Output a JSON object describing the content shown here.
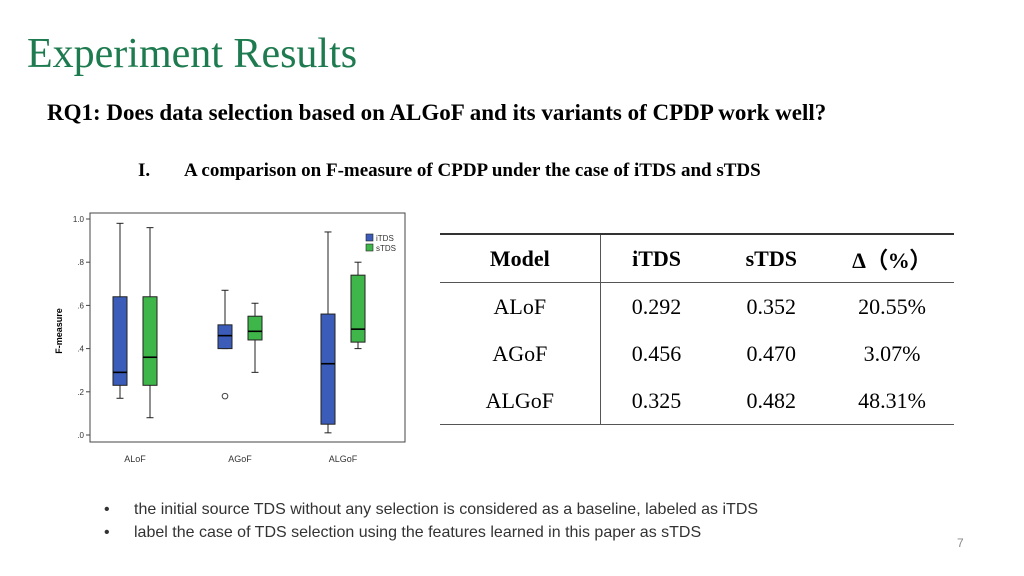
{
  "title": "Experiment Results",
  "research_question": "RQ1: Does data selection based on ALGoF and its variants of CPDP work well?",
  "section": {
    "number": "I.",
    "text": "A comparison on F-measure of CPDP under the case of iTDS and sTDS"
  },
  "colors": {
    "title": "#1e7b4f",
    "itds": "#3b5cb8",
    "stds": "#3fb64a"
  },
  "chart_data": {
    "type": "boxplot",
    "ylabel": "F-measure",
    "ylim": [
      0,
      1.0
    ],
    "yticks": [
      ".0",
      ".2",
      ".4",
      ".6",
      ".8",
      "1.0"
    ],
    "ytick_values": [
      0,
      0.2,
      0.4,
      0.6,
      0.8,
      1.0
    ],
    "categories": [
      "ALoF",
      "AGoF",
      "ALGoF"
    ],
    "legend": {
      "position": "top-right",
      "entries": [
        "iTDS",
        "sTDS"
      ]
    },
    "series": [
      {
        "name": "iTDS",
        "boxes": [
          {
            "min": 0.17,
            "q1": 0.23,
            "median": 0.29,
            "q3": 0.64,
            "max": 0.98,
            "outliers": []
          },
          {
            "min": 0.4,
            "q1": 0.4,
            "median": 0.46,
            "q3": 0.51,
            "max": 0.67,
            "outliers": [
              0.18
            ]
          },
          {
            "min": 0.01,
            "q1": 0.05,
            "median": 0.33,
            "q3": 0.56,
            "max": 0.94,
            "outliers": []
          }
        ]
      },
      {
        "name": "sTDS",
        "boxes": [
          {
            "min": 0.08,
            "q1": 0.23,
            "median": 0.36,
            "q3": 0.64,
            "max": 0.96,
            "outliers": []
          },
          {
            "min": 0.29,
            "q1": 0.44,
            "median": 0.48,
            "q3": 0.55,
            "max": 0.61,
            "outliers": []
          },
          {
            "min": 0.4,
            "q1": 0.43,
            "median": 0.49,
            "q3": 0.74,
            "max": 0.8,
            "outliers": []
          }
        ]
      }
    ]
  },
  "table": {
    "headers": [
      "Model",
      "iTDS",
      "sTDS",
      "∆（%）"
    ],
    "rows": [
      [
        "ALoF",
        "0.292",
        "0.352",
        "20.55%"
      ],
      [
        "AGoF",
        "0.456",
        "0.470",
        "3.07%"
      ],
      [
        "ALGoF",
        "0.325",
        "0.482",
        "48.31%"
      ]
    ]
  },
  "bullets": [
    "the initial source TDS without any selection is considered as a baseline, labeled as iTDS",
    "label the case of TDS selection using the features learned in this paper as sTDS"
  ],
  "bullet_marker": "•",
  "page_number": "7"
}
